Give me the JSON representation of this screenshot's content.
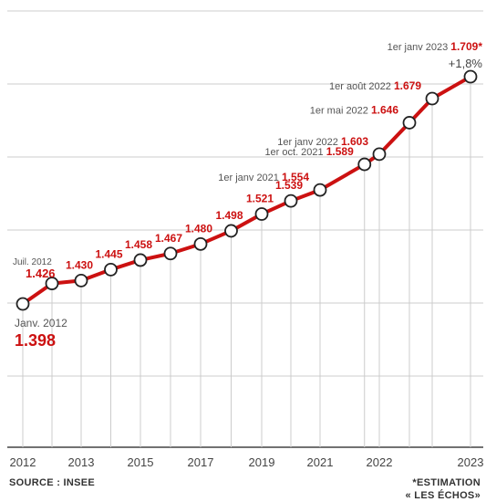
{
  "chart_data": {
    "type": "line",
    "colors": {
      "line": "#cc1111",
      "grid": "#cccccc",
      "label": "#555555",
      "value": "#cc1111"
    },
    "ylim": [
      1.32,
      1.74
    ],
    "x_ticks": [
      "2012",
      "2013",
      "2015",
      "2017",
      "2019",
      "2021",
      "2022",
      "2023"
    ],
    "points": [
      {
        "x": 2012.0,
        "y": 1.398,
        "value_label": "1.398",
        "date_label": "Janv. 2012"
      },
      {
        "x": 2012.5,
        "y": 1.426,
        "value_label": "1.426",
        "date_label": "Juil. 2012"
      },
      {
        "x": 2013.0,
        "y": 1.43,
        "value_label": "1.430",
        "date_label": ""
      },
      {
        "x": 2014.0,
        "y": 1.445,
        "value_label": "1.445",
        "date_label": ""
      },
      {
        "x": 2015.0,
        "y": 1.458,
        "value_label": "1.458",
        "date_label": ""
      },
      {
        "x": 2016.0,
        "y": 1.467,
        "value_label": "1.467",
        "date_label": ""
      },
      {
        "x": 2017.0,
        "y": 1.48,
        "value_label": "1.480",
        "date_label": ""
      },
      {
        "x": 2018.0,
        "y": 1.498,
        "value_label": "1.498",
        "date_label": ""
      },
      {
        "x": 2019.0,
        "y": 1.521,
        "value_label": "1.521",
        "date_label": ""
      },
      {
        "x": 2020.0,
        "y": 1.539,
        "value_label": "1.539",
        "date_label": ""
      },
      {
        "x": 2021.0,
        "y": 1.554,
        "value_label": "1.554",
        "date_label": "1er janv 2021"
      },
      {
        "x": 2021.75,
        "y": 1.589,
        "value_label": "1.589",
        "date_label": "1er oct. 2021"
      },
      {
        "x": 2022.0,
        "y": 1.603,
        "value_label": "1.603",
        "date_label": "1er janv 2022"
      },
      {
        "x": 2022.33,
        "y": 1.646,
        "value_label": "1.646",
        "date_label": "1er mai 2022"
      },
      {
        "x": 2022.58,
        "y": 1.679,
        "value_label": "1.679",
        "date_label": "1er août 2022"
      },
      {
        "x": 2023.0,
        "y": 1.709,
        "value_label": "1.709*",
        "date_label": "1er janv 2023",
        "change_label": "+1,8%"
      }
    ]
  },
  "footer": {
    "source": "SOURCE : INSEE",
    "note_line1": "*ESTIMATION",
    "note_line2": "« LES ÉCHOS»"
  }
}
